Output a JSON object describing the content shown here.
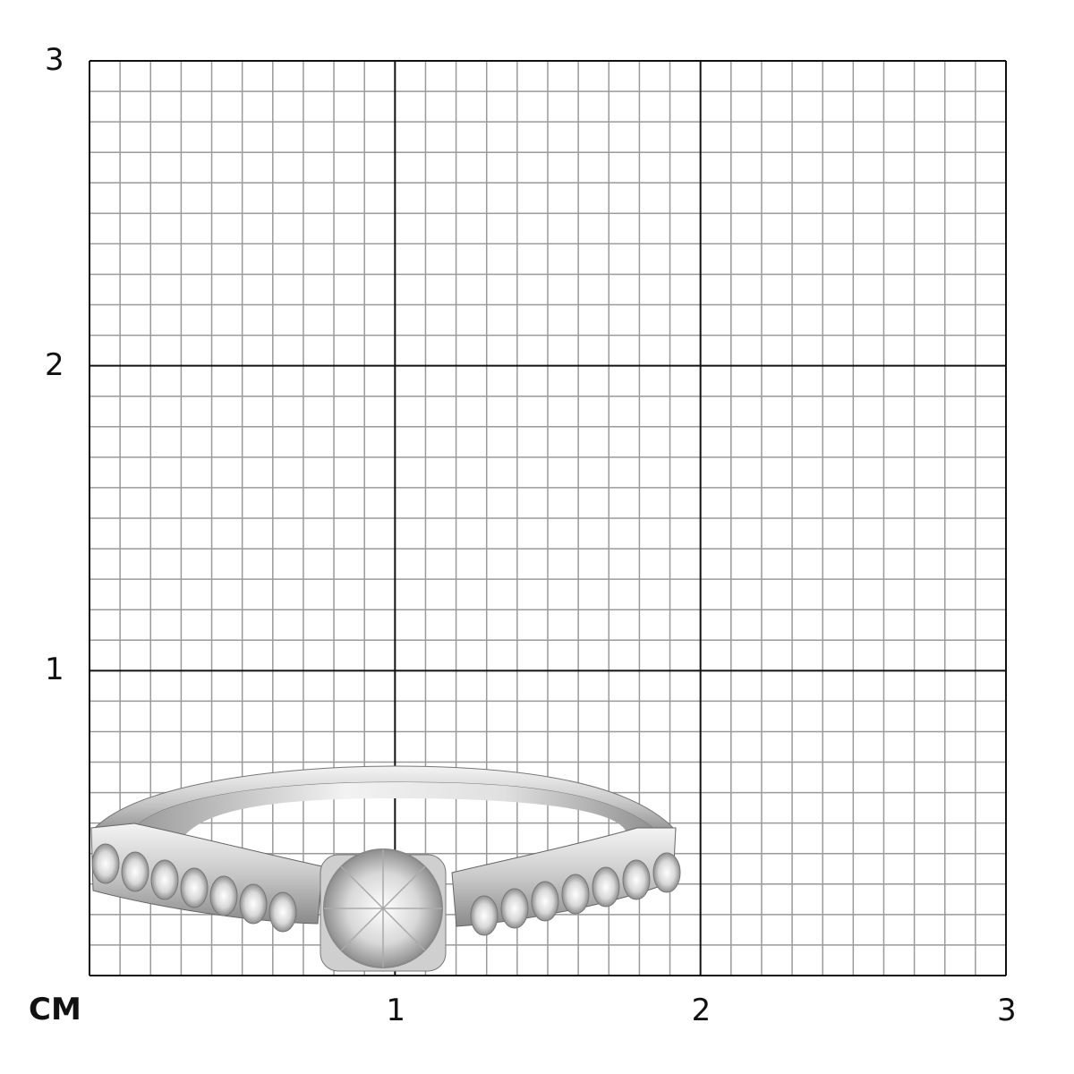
{
  "scale": {
    "unit_label": "CM",
    "x_labels": [
      "1",
      "2",
      "3"
    ],
    "y_labels": [
      "1",
      "2",
      "3"
    ],
    "range_cm": [
      0,
      3
    ],
    "subdivisions_per_cm": 10
  },
  "colors": {
    "major_line": "#111111",
    "minor_line": "#9a9a9a",
    "metal": "#d9d9d9"
  },
  "product": {
    "icon": "diamond-solitaire-ring-image",
    "side_stones_per_side": 7
  }
}
